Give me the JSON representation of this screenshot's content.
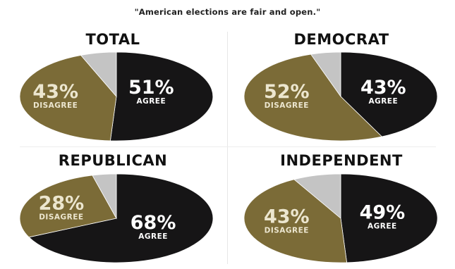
{
  "title": "\"American elections are fair and open.\"",
  "colors": {
    "agree": "#161516",
    "disagree": "#7b6b37",
    "other": "#c4c4c4",
    "agree_text": "#ffffff",
    "disagree_text": "#ece6cf"
  },
  "chart_data": [
    {
      "type": "pie",
      "title": "TOTAL",
      "slices": [
        {
          "label": "AGREE",
          "value": 51,
          "display": "51%",
          "color": "agree"
        },
        {
          "label": "DISAGREE",
          "value": 43,
          "display": "43%",
          "color": "disagree"
        },
        {
          "label": "",
          "value": 6,
          "display": "",
          "color": "other"
        }
      ]
    },
    {
      "type": "pie",
      "title": "DEMOCRAT",
      "slices": [
        {
          "label": "AGREE",
          "value": 43,
          "display": "43%",
          "color": "agree"
        },
        {
          "label": "DISAGREE",
          "value": 52,
          "display": "52%",
          "color": "disagree"
        },
        {
          "label": "",
          "value": 5,
          "display": "",
          "color": "other"
        }
      ]
    },
    {
      "type": "pie",
      "title": "REPUBLICAN",
      "slices": [
        {
          "label": "AGREE",
          "value": 68,
          "display": "68%",
          "color": "agree"
        },
        {
          "label": "DISAGREE",
          "value": 28,
          "display": "28%",
          "color": "disagree"
        },
        {
          "label": "",
          "value": 4,
          "display": "",
          "color": "other"
        }
      ]
    },
    {
      "type": "pie",
      "title": "INDEPENDENT",
      "slices": [
        {
          "label": "AGREE",
          "value": 49,
          "display": "49%",
          "color": "agree"
        },
        {
          "label": "DISAGREE",
          "value": 43,
          "display": "43%",
          "color": "disagree"
        },
        {
          "label": "",
          "value": 8,
          "display": "",
          "color": "other"
        }
      ]
    }
  ]
}
